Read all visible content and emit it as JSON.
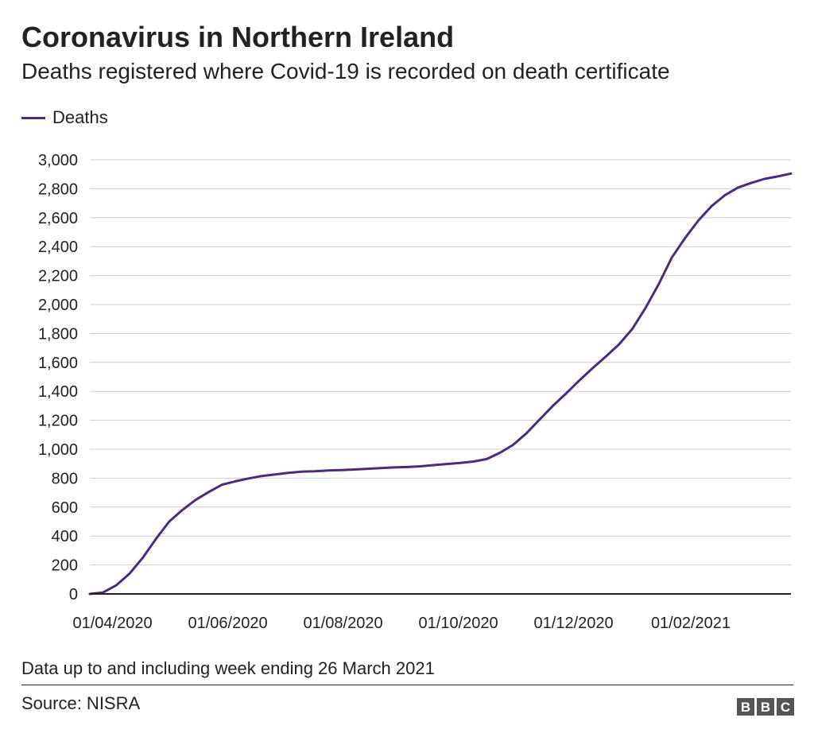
{
  "header": {
    "title": "Coronavirus in Northern Ireland",
    "subtitle": "Deaths registered where Covid-19 is recorded on death certificate"
  },
  "legend": {
    "label": "Deaths",
    "color": "#4a2c7a"
  },
  "footer": {
    "note": "Data up to and including week ending 26 March 2021",
    "source": "Source: NISRA",
    "logo_letters": [
      "B",
      "B",
      "C"
    ]
  },
  "chart_data": {
    "type": "line",
    "title": "Coronavirus in Northern Ireland",
    "subtitle": "Deaths registered where Covid-19 is recorded on death certificate",
    "xlabel": "",
    "ylabel": "",
    "ylim": [
      0,
      3000
    ],
    "xlim": [
      "2020-03-20",
      "2021-03-26"
    ],
    "grid": true,
    "legend_position": "top-left",
    "y_ticks": [
      0,
      200,
      400,
      600,
      800,
      1000,
      1200,
      1400,
      1600,
      1800,
      2000,
      2200,
      2400,
      2600,
      2800,
      3000
    ],
    "x_ticks": [
      {
        "date": "2020-04-01",
        "label": "01/04/2020"
      },
      {
        "date": "2020-06-01",
        "label": "01/06/2020"
      },
      {
        "date": "2020-08-01",
        "label": "01/08/2020"
      },
      {
        "date": "2020-10-01",
        "label": "01/10/2020"
      },
      {
        "date": "2020-12-01",
        "label": "01/12/2020"
      },
      {
        "date": "2021-02-01",
        "label": "01/02/2021"
      }
    ],
    "series": [
      {
        "name": "Deaths",
        "color": "#4a2c7a",
        "points": [
          [
            "2020-03-20",
            0
          ],
          [
            "2020-03-27",
            10
          ],
          [
            "2020-04-03",
            60
          ],
          [
            "2020-04-10",
            140
          ],
          [
            "2020-04-17",
            250
          ],
          [
            "2020-04-24",
            380
          ],
          [
            "2020-05-01",
            500
          ],
          [
            "2020-05-08",
            580
          ],
          [
            "2020-05-15",
            650
          ],
          [
            "2020-05-22",
            705
          ],
          [
            "2020-05-29",
            755
          ],
          [
            "2020-06-05",
            778
          ],
          [
            "2020-06-12",
            798
          ],
          [
            "2020-06-19",
            815
          ],
          [
            "2020-06-26",
            826
          ],
          [
            "2020-07-03",
            836
          ],
          [
            "2020-07-10",
            845
          ],
          [
            "2020-07-17",
            848
          ],
          [
            "2020-07-24",
            853
          ],
          [
            "2020-07-31",
            856
          ],
          [
            "2020-08-07",
            860
          ],
          [
            "2020-08-14",
            865
          ],
          [
            "2020-08-21",
            870
          ],
          [
            "2020-08-28",
            874
          ],
          [
            "2020-09-04",
            877
          ],
          [
            "2020-09-11",
            882
          ],
          [
            "2020-09-18",
            890
          ],
          [
            "2020-09-25",
            898
          ],
          [
            "2020-10-02",
            905
          ],
          [
            "2020-10-09",
            915
          ],
          [
            "2020-10-16",
            932
          ],
          [
            "2020-10-23",
            975
          ],
          [
            "2020-10-30",
            1030
          ],
          [
            "2020-11-06",
            1110
          ],
          [
            "2020-11-13",
            1205
          ],
          [
            "2020-11-20",
            1300
          ],
          [
            "2020-11-27",
            1385
          ],
          [
            "2020-12-04",
            1475
          ],
          [
            "2020-12-11",
            1560
          ],
          [
            "2020-12-18",
            1640
          ],
          [
            "2020-12-25",
            1725
          ],
          [
            "2021-01-01",
            1830
          ],
          [
            "2021-01-08",
            1975
          ],
          [
            "2021-01-15",
            2140
          ],
          [
            "2021-01-22",
            2325
          ],
          [
            "2021-01-29",
            2460
          ],
          [
            "2021-02-05",
            2580
          ],
          [
            "2021-02-12",
            2680
          ],
          [
            "2021-02-19",
            2755
          ],
          [
            "2021-02-26",
            2808
          ],
          [
            "2021-03-05",
            2840
          ],
          [
            "2021-03-12",
            2868
          ],
          [
            "2021-03-19",
            2885
          ],
          [
            "2021-03-26",
            2905
          ]
        ]
      }
    ]
  }
}
